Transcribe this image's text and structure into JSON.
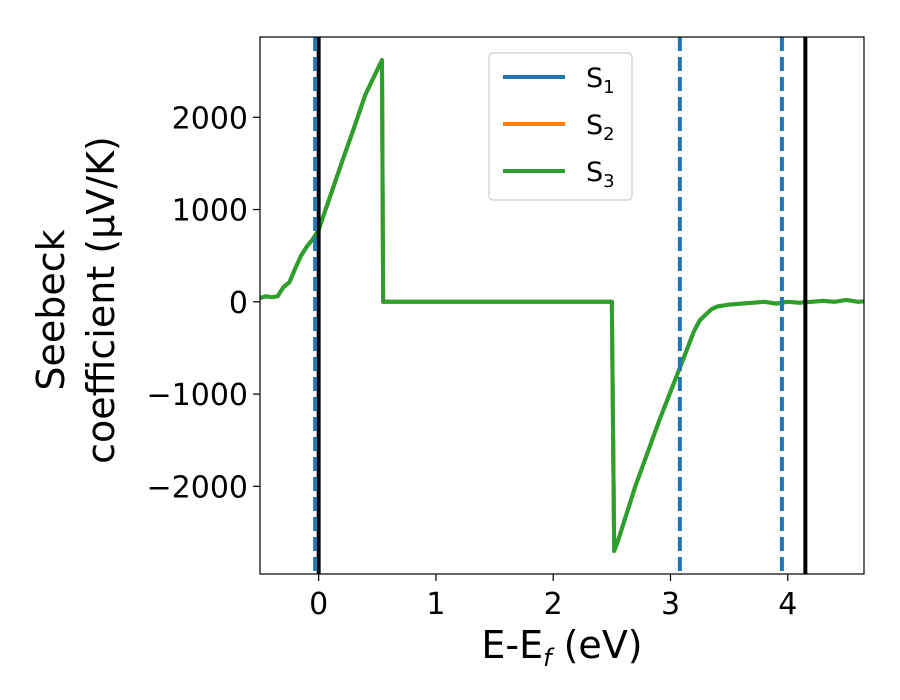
{
  "chart_data": {
    "type": "line",
    "xlabel": "E-E",
    "xlabel_sub": "f",
    "xlabel_unit": " (eV)",
    "ylabel_line1": "Seebeck",
    "ylabel_line2": "coefficient  (μV/K)",
    "xlim": [
      -0.5,
      4.65
    ],
    "ylim": [
      -2950,
      2870
    ],
    "xticks": [
      0,
      1,
      2,
      3,
      4
    ],
    "xtick_labels": [
      "0",
      "1",
      "2",
      "3",
      "4"
    ],
    "yticks": [
      2000,
      1000,
      0,
      -1000,
      -2000
    ],
    "ytick_labels": [
      "2000",
      "1000",
      "0",
      "−1000",
      "−2000"
    ],
    "grid": false,
    "legend_position": "upper-center",
    "series": [
      {
        "name": "S",
        "name_sub": "1",
        "color": "#1f77b4",
        "x": [
          -0.5,
          -0.45,
          -0.4,
          -0.35,
          -0.3,
          -0.25,
          -0.2,
          -0.15,
          -0.1,
          -0.05,
          0,
          0.1,
          0.2,
          0.3,
          0.4,
          0.54,
          0.55,
          0.8,
          1.0,
          1.5,
          2.0,
          2.5,
          2.52,
          2.55,
          2.7,
          2.9,
          3.1,
          3.2,
          3.25,
          3.3,
          3.35,
          3.4,
          3.5,
          3.6,
          3.7,
          3.8,
          3.9,
          4.0,
          4.1,
          4.2,
          4.3,
          4.4,
          4.5,
          4.6,
          4.65
        ],
        "y": [
          40,
          60,
          50,
          60,
          160,
          210,
          360,
          500,
          600,
          680,
          780,
          1150,
          1520,
          1880,
          2250,
          2620,
          0,
          0,
          0,
          0,
          0,
          0,
          -2700,
          -2600,
          -2000,
          -1300,
          -650,
          -320,
          -200,
          -140,
          -80,
          -50,
          -30,
          -20,
          -10,
          0,
          -20,
          0,
          -10,
          0,
          10,
          0,
          20,
          0,
          5
        ]
      },
      {
        "name": "S",
        "name_sub": "2",
        "color": "#ff7f0e",
        "x": [
          -0.5,
          -0.45,
          -0.4,
          -0.35,
          -0.3,
          -0.25,
          -0.2,
          -0.15,
          -0.1,
          -0.05,
          0,
          0.1,
          0.2,
          0.3,
          0.4,
          0.54,
          0.55,
          0.8,
          1.0,
          1.5,
          2.0,
          2.5,
          2.52,
          2.55,
          2.7,
          2.9,
          3.1,
          3.2,
          3.25,
          3.3,
          3.35,
          3.4,
          3.5,
          3.6,
          3.7,
          3.8,
          3.9,
          4.0,
          4.1,
          4.2,
          4.3,
          4.4,
          4.5,
          4.6,
          4.65
        ],
        "y": [
          40,
          60,
          50,
          60,
          160,
          210,
          360,
          500,
          600,
          680,
          780,
          1150,
          1520,
          1880,
          2250,
          2620,
          0,
          0,
          0,
          0,
          0,
          0,
          -2700,
          -2600,
          -2000,
          -1300,
          -650,
          -320,
          -200,
          -140,
          -80,
          -50,
          -30,
          -20,
          -10,
          0,
          -20,
          0,
          -10,
          0,
          10,
          0,
          20,
          0,
          5
        ]
      },
      {
        "name": "S",
        "name_sub": "3",
        "color": "#2ca02c",
        "x": [
          -0.5,
          -0.45,
          -0.4,
          -0.35,
          -0.3,
          -0.25,
          -0.2,
          -0.15,
          -0.1,
          -0.05,
          0,
          0.1,
          0.2,
          0.3,
          0.4,
          0.54,
          0.55,
          0.8,
          1.0,
          1.5,
          2.0,
          2.5,
          2.52,
          2.55,
          2.7,
          2.9,
          3.1,
          3.2,
          3.25,
          3.3,
          3.35,
          3.4,
          3.5,
          3.6,
          3.7,
          3.8,
          3.9,
          4.0,
          4.1,
          4.2,
          4.3,
          4.4,
          4.5,
          4.6,
          4.65
        ],
        "y": [
          40,
          60,
          50,
          60,
          160,
          210,
          360,
          500,
          600,
          680,
          780,
          1150,
          1520,
          1880,
          2250,
          2620,
          0,
          0,
          0,
          0,
          0,
          0,
          -2700,
          -2600,
          -2000,
          -1300,
          -650,
          -320,
          -200,
          -140,
          -80,
          -50,
          -30,
          -20,
          -10,
          0,
          -20,
          0,
          -10,
          0,
          10,
          0,
          20,
          0,
          5
        ]
      }
    ],
    "vlines": [
      {
        "x": 0.0,
        "color": "#000000",
        "style": "solid"
      },
      {
        "x": 4.15,
        "color": "#000000",
        "style": "solid"
      },
      {
        "x": -0.03,
        "color": "#1f77b4",
        "style": "dashed"
      },
      {
        "x": 3.08,
        "color": "#1f77b4",
        "style": "dashed"
      },
      {
        "x": 3.95,
        "color": "#1f77b4",
        "style": "dashed"
      }
    ]
  }
}
